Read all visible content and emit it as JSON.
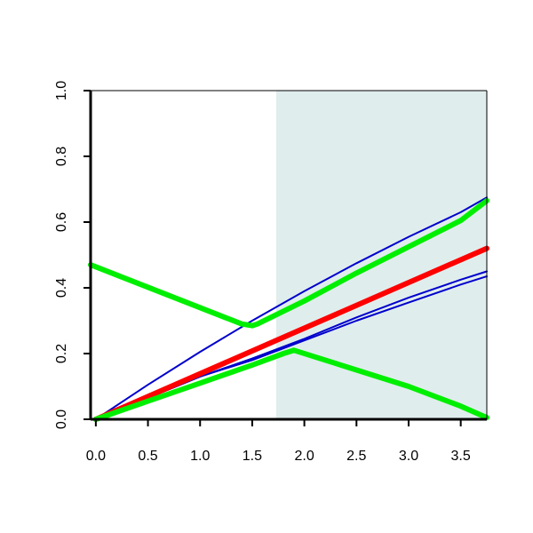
{
  "chart_data": {
    "type": "line",
    "title": "",
    "xlabel": "",
    "ylabel": "",
    "xlim": [
      -0.05,
      3.75
    ],
    "ylim": [
      0.0,
      1.0
    ],
    "x_ticks": [
      0.0,
      0.5,
      1.0,
      1.5,
      2.0,
      2.5,
      3.0,
      3.5
    ],
    "x_tick_labels": [
      "0.0",
      "0.5",
      "1.0",
      "1.5",
      "2.0",
      "2.5",
      "3.0",
      "3.5"
    ],
    "y_ticks": [
      0.0,
      0.2,
      0.4,
      0.6,
      0.8,
      1.0
    ],
    "y_tick_labels": [
      "0.0",
      "0.2",
      "0.4",
      "0.6",
      "0.8",
      "1.0"
    ],
    "grid": false,
    "shaded_region": {
      "x_from": 1.73,
      "x_to": 3.75,
      "color": "#e0eded"
    },
    "series": [
      {
        "color": "#0000cc",
        "width": "thin",
        "points": [
          [
            0.0,
            0.0
          ],
          [
            0.5,
            0.105
          ],
          [
            1.0,
            0.205
          ],
          [
            1.5,
            0.3
          ],
          [
            2.0,
            0.39
          ],
          [
            2.5,
            0.475
          ],
          [
            3.0,
            0.555
          ],
          [
            3.5,
            0.63
          ],
          [
            3.75,
            0.675
          ]
        ]
      },
      {
        "color": "#0000cc",
        "width": "thin",
        "points": [
          [
            0.0,
            0.0
          ],
          [
            0.5,
            0.065
          ],
          [
            1.0,
            0.13
          ],
          [
            1.5,
            0.185
          ],
          [
            2.0,
            0.245
          ],
          [
            2.5,
            0.31
          ],
          [
            3.0,
            0.37
          ],
          [
            3.5,
            0.425
          ],
          [
            3.75,
            0.45
          ]
        ]
      },
      {
        "color": "#0000cc",
        "width": "thin",
        "points": [
          [
            0.0,
            0.0
          ],
          [
            0.5,
            0.065
          ],
          [
            1.0,
            0.13
          ],
          [
            1.5,
            0.18
          ],
          [
            2.0,
            0.24
          ],
          [
            2.5,
            0.3
          ],
          [
            3.0,
            0.355
          ],
          [
            3.5,
            0.41
          ],
          [
            3.75,
            0.435
          ]
        ]
      },
      {
        "color": "#ff0000",
        "width": "thick",
        "points": [
          [
            0.0,
            0.0
          ],
          [
            3.75,
            0.52
          ]
        ]
      },
      {
        "color": "#00ee00",
        "width": "thick",
        "points": [
          [
            -0.05,
            0.47
          ],
          [
            1.4,
            0.29
          ],
          [
            1.5,
            0.285
          ],
          [
            1.55,
            0.29
          ],
          [
            2.0,
            0.36
          ],
          [
            2.5,
            0.445
          ],
          [
            3.0,
            0.525
          ],
          [
            3.5,
            0.605
          ],
          [
            3.75,
            0.665
          ]
        ]
      },
      {
        "color": "#00ee00",
        "width": "thick",
        "points": [
          [
            0.0,
            0.0
          ],
          [
            0.5,
            0.055
          ],
          [
            1.0,
            0.11
          ],
          [
            1.5,
            0.165
          ],
          [
            1.8,
            0.2
          ],
          [
            1.9,
            0.21
          ],
          [
            2.5,
            0.15
          ],
          [
            3.0,
            0.1
          ],
          [
            3.5,
            0.04
          ],
          [
            3.75,
            0.005
          ]
        ]
      }
    ]
  }
}
